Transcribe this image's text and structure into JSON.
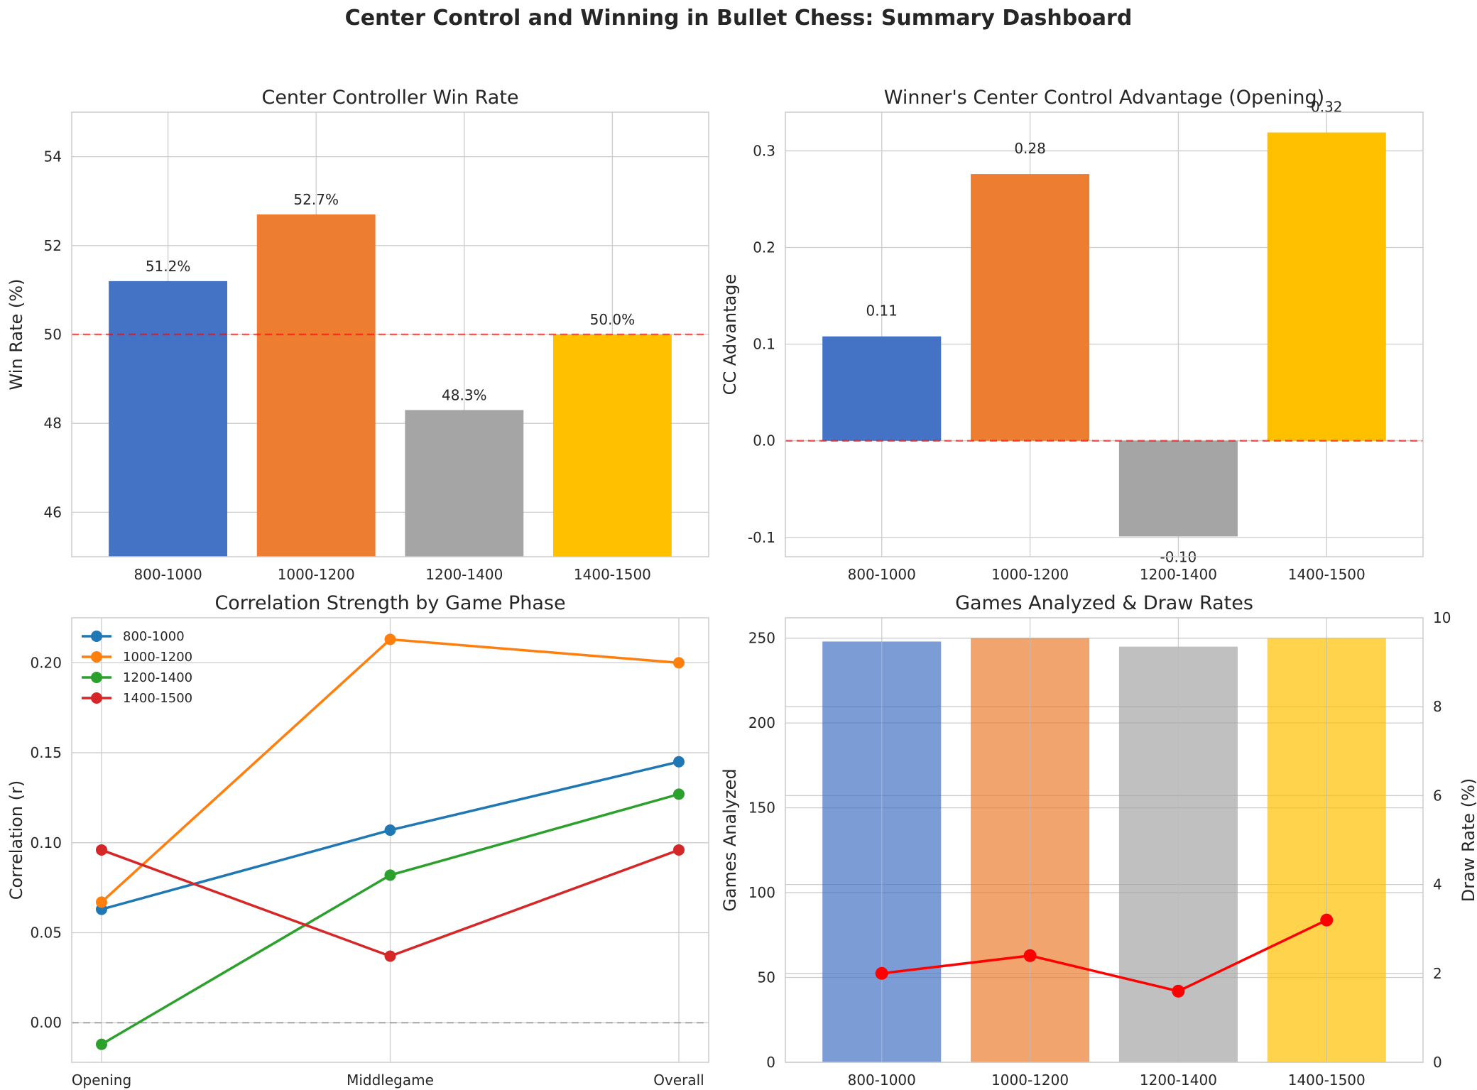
{
  "suptitle": "Center Control and Winning in Bullet Chess: Summary Dashboard",
  "colors": {
    "bars": [
      "#4472C4",
      "#ED7D31",
      "#A5A5A5",
      "#FFC000"
    ],
    "lines": [
      "#1f77b4",
      "#ff7f0e",
      "#2ca02c",
      "#d62728"
    ],
    "reference_line": "#ff0000",
    "zero_line": "#808080",
    "draw_rate_line": "#ff0000"
  },
  "chart_data": [
    {
      "id": "win_rate",
      "type": "bar",
      "title": "Center Controller Win Rate",
      "xlabel": "",
      "ylabel": "Win Rate (%)",
      "categories": [
        "800-1000",
        "1000-1200",
        "1200-1400",
        "1400-1500"
      ],
      "values": [
        51.2,
        52.7,
        48.3,
        50.0
      ],
      "data_labels": [
        "51.2%",
        "52.7%",
        "48.3%",
        "50.0%"
      ],
      "ylim": [
        45,
        55
      ],
      "yticks": [
        46,
        48,
        50,
        52,
        54
      ],
      "ytick_labels": [
        "46",
        "48",
        "50",
        "52",
        "54"
      ],
      "reference_line": 50,
      "grid": true
    },
    {
      "id": "cc_advantage",
      "type": "bar",
      "title": "Winner's Center Control Advantage (Opening)",
      "xlabel": "",
      "ylabel": "CC Advantage",
      "categories": [
        "800-1000",
        "1000-1200",
        "1200-1400",
        "1400-1500"
      ],
      "values": [
        0.108,
        0.276,
        -0.099,
        0.319
      ],
      "data_labels": [
        "0.11",
        "0.28",
        "-0.10",
        "0.32"
      ],
      "ylim": [
        -0.12,
        0.34
      ],
      "yticks": [
        -0.1,
        0.0,
        0.1,
        0.2,
        0.3
      ],
      "ytick_labels": [
        "-0.1",
        "0.0",
        "0.1",
        "0.2",
        "0.3"
      ],
      "reference_line": 0,
      "grid": true
    },
    {
      "id": "correlation",
      "type": "line",
      "title": "Correlation Strength by Game Phase",
      "xlabel": "",
      "ylabel": "Correlation (r)",
      "categories": [
        "Opening",
        "Middlegame",
        "Overall"
      ],
      "series": [
        {
          "name": "800-1000",
          "values": [
            0.063,
            0.107,
            0.145
          ]
        },
        {
          "name": "1000-1200",
          "values": [
            0.067,
            0.213,
            0.2
          ]
        },
        {
          "name": "1200-1400",
          "values": [
            -0.012,
            0.082,
            0.127
          ]
        },
        {
          "name": "1400-1500",
          "values": [
            0.096,
            0.037,
            0.096
          ]
        }
      ],
      "ylim": [
        -0.022,
        0.225
      ],
      "yticks": [
        0.0,
        0.05,
        0.1,
        0.15,
        0.2
      ],
      "ytick_labels": [
        "0.00",
        "0.05",
        "0.10",
        "0.15",
        "0.20"
      ],
      "reference_line": 0,
      "legend": "top-left",
      "grid": true
    },
    {
      "id": "games_draws",
      "type": "bar",
      "title": "Games Analyzed & Draw Rates",
      "xlabel": "",
      "ylabel": "Games Analyzed",
      "y2label": "Draw Rate (%)",
      "categories": [
        "800-1000",
        "1000-1200",
        "1200-1400",
        "1400-1500"
      ],
      "values": [
        248,
        250,
        245,
        250
      ],
      "draw_rates": [
        2.0,
        2.4,
        1.6,
        3.2
      ],
      "ylim": [
        0,
        262
      ],
      "yticks": [
        0,
        50,
        100,
        150,
        200,
        250
      ],
      "ytick_labels": [
        "0",
        "50",
        "100",
        "150",
        "200",
        "250"
      ],
      "y2lim": [
        0,
        10
      ],
      "y2ticks": [
        0,
        2,
        4,
        6,
        8,
        10
      ],
      "y2tick_labels": [
        "0",
        "2",
        "4",
        "6",
        "8",
        "10"
      ],
      "grid": true
    }
  ]
}
